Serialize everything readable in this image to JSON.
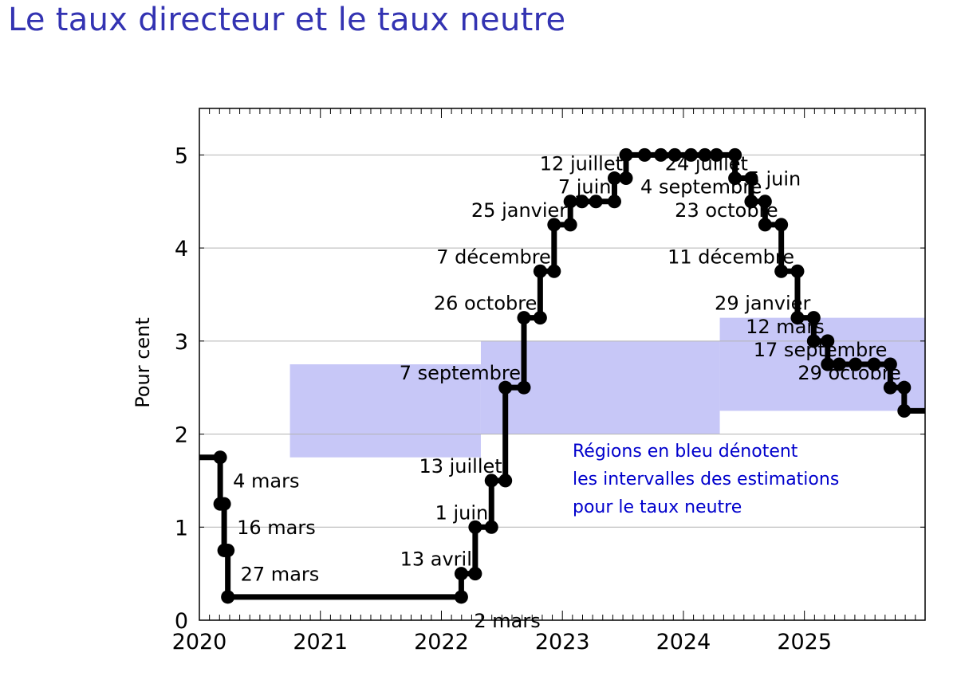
{
  "title": "Le taux directeur et le taux neutre",
  "chart_data": {
    "type": "line",
    "step": true,
    "ylabel": "Pour cent",
    "xlim": [
      "2020-01-01",
      "2025-12-31"
    ],
    "ylim": [
      0,
      5.5
    ],
    "x_ticks": [
      "2020",
      "2021",
      "2022",
      "2023",
      "2024",
      "2025"
    ],
    "y_ticks": [
      0,
      1,
      2,
      3,
      4,
      5
    ],
    "grid": "horizontal",
    "series": [
      {
        "name": "",
        "color": "#000000",
        "points": [
          {
            "date": "2020-01-01",
            "value": 1.75
          },
          {
            "date": "2020-03-04",
            "value": 1.25
          },
          {
            "date": "2020-03-16",
            "value": 0.75
          },
          {
            "date": "2020-03-27",
            "value": 0.25
          },
          {
            "date": "2022-03-02",
            "value": 0.5
          },
          {
            "date": "2022-04-13",
            "value": 1.0
          },
          {
            "date": "2022-06-01",
            "value": 1.5
          },
          {
            "date": "2022-07-13",
            "value": 2.5
          },
          {
            "date": "2022-09-07",
            "value": 3.25
          },
          {
            "date": "2022-10-26",
            "value": 3.75
          },
          {
            "date": "2022-12-07",
            "value": 4.25
          },
          {
            "date": "2023-01-25",
            "value": 4.5
          },
          {
            "date": "2023-06-07",
            "value": 4.75
          },
          {
            "date": "2023-07-12",
            "value": 5.0
          },
          {
            "date": "2024-06-05",
            "value": 4.75
          },
          {
            "date": "2024-07-24",
            "value": 4.5
          },
          {
            "date": "2024-09-04",
            "value": 4.25
          },
          {
            "date": "2024-10-23",
            "value": 3.75
          },
          {
            "date": "2024-12-11",
            "value": 3.25
          },
          {
            "date": "2025-01-29",
            "value": 3.0
          },
          {
            "date": "2025-03-12",
            "value": 2.75
          },
          {
            "date": "2025-09-17",
            "value": 2.5
          },
          {
            "date": "2025-10-29",
            "value": 2.25
          }
        ],
        "markers": [
          "2020-03-04",
          "2020-03-16",
          "2020-03-27",
          "2022-03-02",
          "2022-04-13",
          "2022-06-01",
          "2022-07-13",
          "2022-09-07",
          "2022-10-26",
          "2022-12-07",
          "2023-01-25",
          "2023-03-01",
          "2023-04-12",
          "2023-06-07",
          "2023-07-12",
          "2023-09-06",
          "2023-10-25",
          "2023-12-06",
          "2024-01-24",
          "2024-03-06",
          "2024-04-10",
          "2024-06-05",
          "2024-07-24",
          "2024-09-04",
          "2024-10-23",
          "2024-12-11",
          "2025-01-29",
          "2025-03-12",
          "2025-04-16",
          "2025-06-04",
          "2025-07-30",
          "2025-09-17",
          "2025-10-29"
        ]
      }
    ],
    "annotations": [
      {
        "text": "4 mars",
        "date": "2020-03-04",
        "value": 1.75,
        "side": "right"
      },
      {
        "text": "16 mars",
        "date": "2020-03-16",
        "value": 1.25,
        "side": "right"
      },
      {
        "text": "27 mars",
        "date": "2020-03-27",
        "value": 0.75,
        "side": "right"
      },
      {
        "text": "2 mars",
        "date": "2022-03-02",
        "value": 0.25,
        "side": "right"
      },
      {
        "text": "13 avril",
        "date": "2022-04-13",
        "value": 0.5,
        "side": "left"
      },
      {
        "text": "1 juin",
        "date": "2022-06-01",
        "value": 1.0,
        "side": "left"
      },
      {
        "text": "13 juillet",
        "date": "2022-07-13",
        "value": 1.5,
        "side": "left"
      },
      {
        "text": "7 septembre",
        "date": "2022-09-07",
        "value": 2.5,
        "side": "left"
      },
      {
        "text": "26 octobre",
        "date": "2022-10-26",
        "value": 3.25,
        "side": "left"
      },
      {
        "text": "7 décembre",
        "date": "2022-12-07",
        "value": 3.75,
        "side": "left"
      },
      {
        "text": "25 janvier",
        "date": "2023-01-25",
        "value": 4.25,
        "side": "left"
      },
      {
        "text": "7 juin",
        "date": "2023-06-07",
        "value": 4.5,
        "side": "left"
      },
      {
        "text": "12 juillet",
        "date": "2023-07-12",
        "value": 4.75,
        "side": "left"
      },
      {
        "text": "5 juin",
        "date": "2024-06-05",
        "value": 5.0,
        "side": "right"
      },
      {
        "text": "24 juillet",
        "date": "2024-07-24",
        "value": 4.75,
        "side": "left"
      },
      {
        "text": "4 septembre",
        "date": "2024-09-04",
        "value": 4.5,
        "side": "left"
      },
      {
        "text": "23 octobre",
        "date": "2024-10-23",
        "value": 4.25,
        "side": "left"
      },
      {
        "text": "11 décembre",
        "date": "2024-12-11",
        "value": 3.75,
        "side": "left"
      },
      {
        "text": "29 janvier",
        "date": "2025-01-29",
        "value": 3.25,
        "side": "left"
      },
      {
        "text": "12 mars",
        "date": "2025-03-12",
        "value": 3.0,
        "side": "left"
      },
      {
        "text": "17 septembre",
        "date": "2025-09-17",
        "value": 2.75,
        "side": "left"
      },
      {
        "text": "29 octobre",
        "date": "2025-10-29",
        "value": 2.5,
        "side": "left"
      }
    ],
    "neutral_rate_ranges": [
      {
        "start": "2020-10-01",
        "end": "2022-04-30",
        "low": 1.75,
        "high": 2.75
      },
      {
        "start": "2022-04-30",
        "end": "2024-04-20",
        "low": 2.0,
        "high": 3.0
      },
      {
        "start": "2024-04-20",
        "end": "2025-12-31",
        "low": 2.25,
        "high": 3.25
      }
    ],
    "range_color": "#c7c7f7",
    "note": [
      "Régions en bleu dénotent",
      "les intervalles des estimations",
      "pour le taux neutre"
    ],
    "note_color": "#0000cc"
  }
}
